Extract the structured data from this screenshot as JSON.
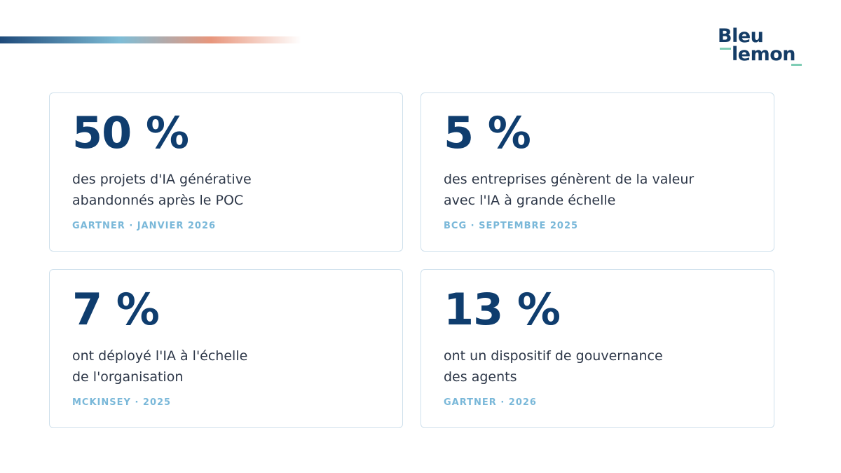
{
  "logo": {
    "line1": "Bleu",
    "line2": "lemon"
  },
  "cards": [
    {
      "stat": "50 %",
      "description": [
        "des projets d'IA générative",
        "abandonnés après le POC"
      ],
      "source": "GARTNER · JANVIER 2026"
    },
    {
      "stat": "5 %",
      "description": [
        "des entreprises génèrent de la valeur",
        "avec l'IA à grande échelle"
      ],
      "source": "BCG · SEPTEMBRE 2025"
    },
    {
      "stat": "7 %",
      "description": [
        "ont déployé l'IA à l'échelle",
        "de l'organisation"
      ],
      "source": "MCKINSEY · 2025"
    },
    {
      "stat": "13 %",
      "description": [
        "ont un dispositif de gouvernance",
        "des agents"
      ],
      "source": "GARTNER · 2026"
    }
  ]
}
